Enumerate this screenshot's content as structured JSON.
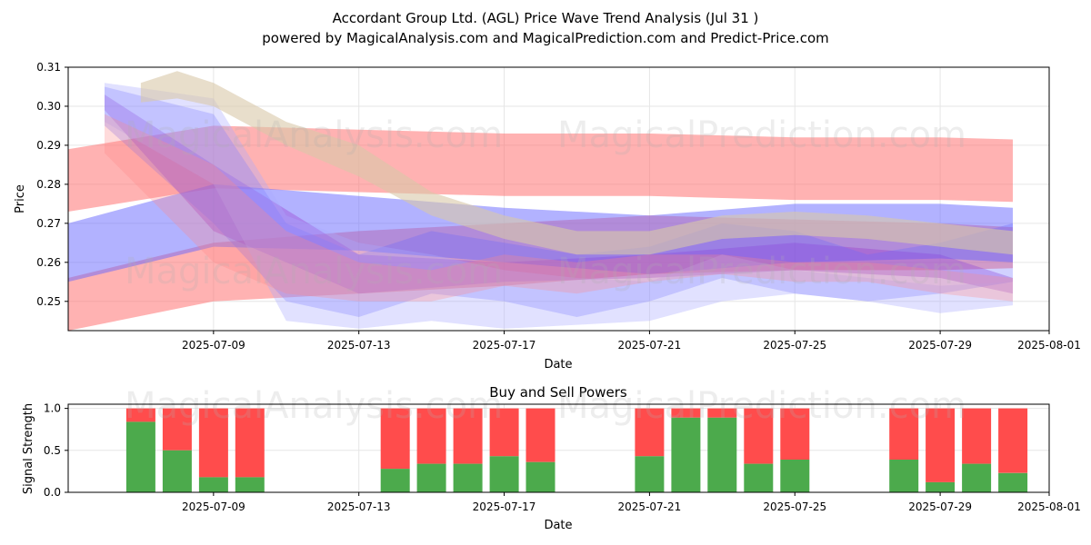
{
  "figure": {
    "title_line1": "Accordant Group Ltd. (AGL) Price Wave Trend Analysis (Jul 31 )",
    "title_line2": "powered by MagicalAnalysis.com and MagicalPrediction.com and Predict-Price.com",
    "watermarks": [
      "MagicalAnalysis.com",
      "MagicalPrediction.com"
    ]
  },
  "chart_data": [
    {
      "type": "area",
      "title": "Price Wave Trend",
      "xlabel": "Date",
      "ylabel": "Price",
      "xlim": [
        "2025-07-05",
        "2025-08-01"
      ],
      "ylim": [
        0.2425,
        0.31
      ],
      "x_ticks": [
        "2025-07-09",
        "2025-07-13",
        "2025-07-17",
        "2025-07-21",
        "2025-07-25",
        "2025-07-29",
        "2025-08-01"
      ],
      "y_ticks": [
        "0.25",
        "0.26",
        "0.27",
        "0.28",
        "0.29",
        "0.30",
        "0.31"
      ],
      "grid": true,
      "bands": [
        {
          "color": "#ff6666",
          "opacity": 0.5,
          "x": [
            "2025-07-05",
            "2025-07-09",
            "2025-07-13",
            "2025-07-17",
            "2025-07-21",
            "2025-07-25",
            "2025-07-29",
            "2025-07-31"
          ],
          "upper": [
            0.289,
            0.295,
            0.294,
            0.293,
            0.293,
            0.292,
            0.292,
            0.2915
          ],
          "lower": [
            0.273,
            0.279,
            0.278,
            0.277,
            0.277,
            0.276,
            0.276,
            0.2755
          ]
        },
        {
          "color": "#ff6666",
          "opacity": 0.5,
          "x": [
            "2025-07-05",
            "2025-07-09",
            "2025-07-13",
            "2025-07-17",
            "2025-07-21",
            "2025-07-25",
            "2025-07-29",
            "2025-07-31"
          ],
          "upper": [
            0.256,
            0.265,
            0.268,
            0.27,
            0.272,
            0.271,
            0.27,
            0.269
          ],
          "lower": [
            0.2425,
            0.25,
            0.252,
            0.254,
            0.257,
            0.258,
            0.258,
            0.2585
          ]
        },
        {
          "color": "#6666ff",
          "opacity": 0.5,
          "x": [
            "2025-07-05",
            "2025-07-09",
            "2025-07-13",
            "2025-07-17",
            "2025-07-21",
            "2025-07-25",
            "2025-07-29",
            "2025-07-31"
          ],
          "upper": [
            0.27,
            0.28,
            0.277,
            0.274,
            0.272,
            0.275,
            0.275,
            0.274
          ],
          "lower": [
            0.255,
            0.264,
            0.263,
            0.26,
            0.257,
            0.26,
            0.261,
            0.26
          ]
        },
        {
          "color": "#9933cc",
          "opacity": 0.35,
          "x": [
            "2025-07-06",
            "2025-07-09",
            "2025-07-13",
            "2025-07-17",
            "2025-07-21",
            "2025-07-25",
            "2025-07-29",
            "2025-07-31"
          ],
          "upper": [
            0.303,
            0.285,
            0.262,
            0.26,
            0.262,
            0.265,
            0.262,
            0.256
          ],
          "lower": [
            0.299,
            0.268,
            0.252,
            0.255,
            0.256,
            0.258,
            0.256,
            0.252
          ]
        },
        {
          "color": "#6666ff",
          "opacity": 0.3,
          "x": [
            "2025-07-06",
            "2025-07-09",
            "2025-07-11",
            "2025-07-13",
            "2025-07-15",
            "2025-07-17",
            "2025-07-19",
            "2025-07-21",
            "2025-07-23",
            "2025-07-25",
            "2025-07-27",
            "2025-07-29",
            "2025-07-31"
          ],
          "upper": [
            0.305,
            0.298,
            0.27,
            0.262,
            0.268,
            0.265,
            0.262,
            0.264,
            0.27,
            0.268,
            0.262,
            0.265,
            0.27
          ],
          "lower": [
            0.295,
            0.27,
            0.25,
            0.246,
            0.252,
            0.25,
            0.246,
            0.25,
            0.256,
            0.252,
            0.25,
            0.252,
            0.255
          ]
        },
        {
          "color": "#aaaaff",
          "opacity": 0.35,
          "x": [
            "2025-07-06",
            "2025-07-09",
            "2025-07-11",
            "2025-07-13",
            "2025-07-15",
            "2025-07-17",
            "2025-07-19",
            "2025-07-21",
            "2025-07-23",
            "2025-07-25",
            "2025-07-27",
            "2025-07-29",
            "2025-07-31"
          ],
          "upper": [
            0.306,
            0.302,
            0.272,
            0.265,
            0.262,
            0.258,
            0.256,
            0.255,
            0.262,
            0.258,
            0.256,
            0.254,
            0.255
          ],
          "lower": [
            0.296,
            0.28,
            0.245,
            0.243,
            0.245,
            0.243,
            0.244,
            0.245,
            0.25,
            0.252,
            0.25,
            0.247,
            0.249
          ]
        },
        {
          "color": "#d8c8a8",
          "opacity": 0.6,
          "x": [
            "2025-07-07",
            "2025-07-08",
            "2025-07-09",
            "2025-07-11",
            "2025-07-13",
            "2025-07-15",
            "2025-07-17",
            "2025-07-19",
            "2025-07-21",
            "2025-07-23",
            "2025-07-25",
            "2025-07-27",
            "2025-07-29",
            "2025-07-31"
          ],
          "upper": [
            0.306,
            0.309,
            0.306,
            0.296,
            0.29,
            0.278,
            0.272,
            0.268,
            0.268,
            0.272,
            0.273,
            0.272,
            0.27,
            0.268
          ],
          "lower": [
            0.301,
            0.302,
            0.3,
            0.29,
            0.282,
            0.272,
            0.266,
            0.262,
            0.262,
            0.266,
            0.267,
            0.266,
            0.264,
            0.262
          ]
        },
        {
          "color": "#ff8888",
          "opacity": 0.3,
          "x": [
            "2025-07-06",
            "2025-07-09",
            "2025-07-11",
            "2025-07-13",
            "2025-07-15",
            "2025-07-17",
            "2025-07-19",
            "2025-07-21",
            "2025-07-23",
            "2025-07-25",
            "2025-07-27",
            "2025-07-29",
            "2025-07-31"
          ],
          "upper": [
            0.298,
            0.285,
            0.268,
            0.26,
            0.258,
            0.262,
            0.26,
            0.262,
            0.262,
            0.26,
            0.26,
            0.258,
            0.256
          ],
          "lower": [
            0.288,
            0.26,
            0.252,
            0.25,
            0.25,
            0.254,
            0.252,
            0.255,
            0.257,
            0.255,
            0.255,
            0.252,
            0.25
          ]
        }
      ]
    },
    {
      "type": "bar",
      "title": "Buy and Sell Powers",
      "xlabel": "Date",
      "ylabel": "Signal Strength",
      "xlim": [
        "2025-07-05",
        "2025-08-01"
      ],
      "ylim": [
        0,
        1.05
      ],
      "x_ticks": [
        "2025-07-09",
        "2025-07-13",
        "2025-07-17",
        "2025-07-21",
        "2025-07-25",
        "2025-07-29",
        "2025-08-01"
      ],
      "y_ticks": [
        "0.0",
        "0.5",
        "1.0"
      ],
      "grid": true,
      "series": [
        {
          "name": "Buy",
          "color": "#4caa4c"
        },
        {
          "name": "Sell",
          "color": "#ff4c4c"
        }
      ],
      "categories": [
        "2025-07-07",
        "2025-07-08",
        "2025-07-09",
        "2025-07-10",
        "2025-07-14",
        "2025-07-15",
        "2025-07-16",
        "2025-07-17",
        "2025-07-18",
        "2025-07-21",
        "2025-07-22",
        "2025-07-23",
        "2025-07-24",
        "2025-07-25",
        "2025-07-28",
        "2025-07-29",
        "2025-07-30",
        "2025-07-31"
      ],
      "buy": [
        0.84,
        0.5,
        0.18,
        0.18,
        0.28,
        0.34,
        0.34,
        0.43,
        0.36,
        0.43,
        0.89,
        0.89,
        0.34,
        0.39,
        0.39,
        0.12,
        0.34,
        0.23
      ],
      "total": [
        1.0,
        1.0,
        1.0,
        1.0,
        1.0,
        1.0,
        1.0,
        1.0,
        1.0,
        1.0,
        1.0,
        1.0,
        1.0,
        1.0,
        1.0,
        1.0,
        1.0,
        1.0
      ]
    }
  ]
}
